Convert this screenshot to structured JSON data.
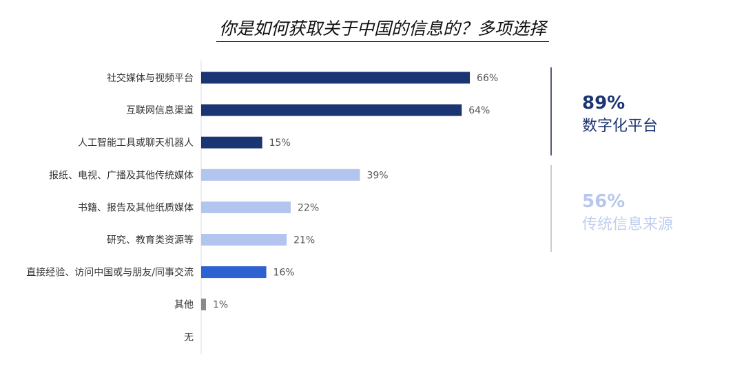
{
  "chart_data": {
    "type": "bar",
    "orientation": "horizontal",
    "title": "你是如何获取关于中国的信息的？多项选择",
    "categories": [
      "社交媒体与视频平台",
      "互联网信息渠道",
      "人工智能工具或聊天机器人",
      "报纸、电视、广播及其他传统媒体",
      "书籍、报告及其他纸质媒体",
      "研究、教育类资源等",
      "直接经验、访问中国或与朋友/同事交流",
      "其他",
      "无"
    ],
    "values": [
      66,
      64,
      15,
      39,
      22,
      21,
      16,
      1,
      null
    ],
    "value_labels": [
      "66%",
      "64%",
      "15%",
      "39%",
      "22%",
      "21%",
      "16%",
      "1%",
      ""
    ],
    "bar_colors": [
      "#1b3473",
      "#1b3473",
      "#1b3473",
      "#b3c5ee",
      "#b3c5ee",
      "#b3c5ee",
      "#2e62d0",
      "#8a8a8a",
      "#8a8a8a"
    ],
    "xlim": [
      0,
      100
    ],
    "grid": false,
    "summary": [
      {
        "value": "89%",
        "label": "数字化平台",
        "color": "#1b3473"
      },
      {
        "value": "56%",
        "label": "传统信息来源",
        "color": "#c0cfee"
      }
    ]
  }
}
